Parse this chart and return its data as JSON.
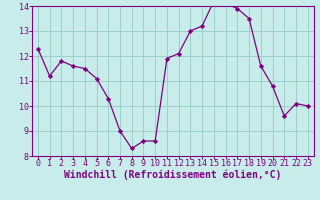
{
  "x": [
    0,
    1,
    2,
    3,
    4,
    5,
    6,
    7,
    8,
    9,
    10,
    11,
    12,
    13,
    14,
    15,
    16,
    17,
    18,
    19,
    20,
    21,
    22,
    23
  ],
  "y": [
    12.3,
    11.2,
    11.8,
    11.6,
    11.5,
    11.1,
    10.3,
    9.0,
    8.3,
    8.6,
    8.6,
    11.9,
    12.1,
    13.0,
    13.2,
    14.2,
    14.1,
    13.9,
    13.5,
    11.6,
    10.8,
    9.6,
    10.1,
    10.0
  ],
  "line_color": "#800080",
  "marker": "D",
  "marker_size": 2.2,
  "background_color": "#c8ecea",
  "grid_color": "#9ecfcc",
  "xlabel": "Windchill (Refroidissement éolien,°C)",
  "xlabel_color": "#800080",
  "tick_color": "#800080",
  "ylim": [
    8,
    14
  ],
  "xlim": [
    -0.5,
    23.5
  ],
  "yticks": [
    8,
    9,
    10,
    11,
    12,
    13,
    14
  ],
  "xticks": [
    0,
    1,
    2,
    3,
    4,
    5,
    6,
    7,
    8,
    9,
    10,
    11,
    12,
    13,
    14,
    15,
    16,
    17,
    18,
    19,
    20,
    21,
    22,
    23
  ],
  "spine_color": "#800080",
  "label_fontsize": 7.0,
  "tick_fontsize": 6.0,
  "linewidth": 0.9
}
